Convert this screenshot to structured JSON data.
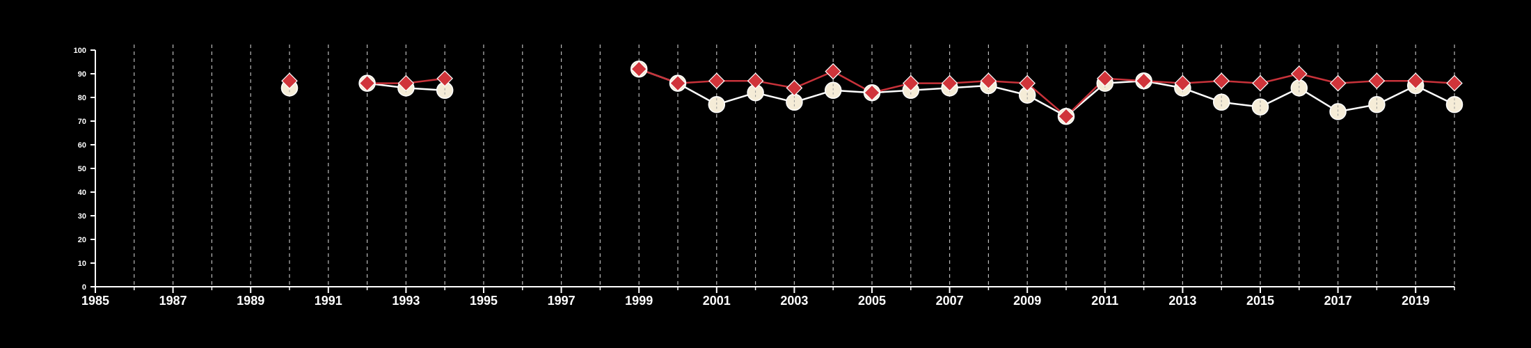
{
  "chart_data": {
    "type": "line",
    "title": "",
    "xlabel": "",
    "ylabel": "",
    "xlim": [
      1985,
      2020
    ],
    "ylim": [
      0,
      100
    ],
    "x_ticks": [
      1985,
      1987,
      1989,
      1991,
      1993,
      1995,
      1997,
      1999,
      2001,
      2003,
      2005,
      2007,
      2009,
      2011,
      2013,
      2015,
      2017,
      2019
    ],
    "y_ticks": [
      0,
      10,
      20,
      30,
      40,
      50,
      60,
      70,
      80,
      90,
      100
    ],
    "x_tick_labels": [
      "1985",
      "1987",
      "1989",
      "1991",
      "1993",
      "1995",
      "1997",
      "1999",
      "2001",
      "2003",
      "2005",
      "2007",
      "2009",
      "2011",
      "2013",
      "2015",
      "2017",
      "2019"
    ],
    "y_tick_labels": [
      "0",
      "10",
      "20",
      "30",
      "40",
      "50",
      "60",
      "70",
      "80",
      "90",
      "100"
    ],
    "vertical_grid": "dashed, every year 1986-2020",
    "horizontal_grid": false,
    "legend": "none",
    "background_color": "#000000",
    "axis_color": "#ffffff",
    "grid_color": "#bbbbbb",
    "series": [
      {
        "marker": "circle",
        "color": "#f5ecd7",
        "line_color": "#ffffff",
        "x": [
          1990,
          1992,
          1993,
          1994,
          1999,
          2000,
          2001,
          2002,
          2003,
          2004,
          2005,
          2006,
          2007,
          2008,
          2009,
          2010,
          2011,
          2012,
          2013,
          2014,
          2015,
          2016,
          2017,
          2018,
          2019,
          2020
        ],
        "y": [
          84,
          86,
          84,
          83,
          92,
          86,
          77,
          82,
          78,
          83,
          82,
          83,
          84,
          85,
          81,
          72,
          86,
          87,
          84,
          78,
          76,
          84,
          74,
          77,
          85,
          77
        ]
      },
      {
        "marker": "diamond",
        "color": "#d0343a",
        "line_color": "#c8323a",
        "x": [
          1990,
          1992,
          1993,
          1994,
          1999,
          2000,
          2001,
          2002,
          2003,
          2004,
          2005,
          2006,
          2007,
          2008,
          2009,
          2010,
          2011,
          2012,
          2013,
          2014,
          2015,
          2016,
          2017,
          2018,
          2019,
          2020
        ],
        "y": [
          87,
          86,
          86,
          88,
          92,
          86,
          87,
          87,
          84,
          91,
          82,
          86,
          86,
          87,
          86,
          72,
          88,
          87,
          86,
          87,
          86,
          90,
          86,
          87,
          87,
          86
        ]
      }
    ]
  }
}
